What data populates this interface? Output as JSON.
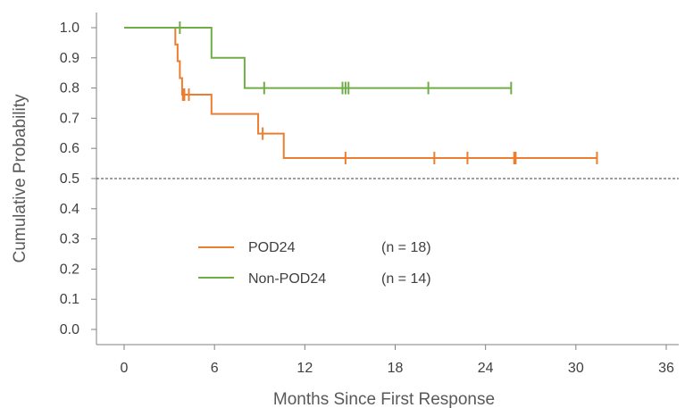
{
  "chart_data": {
    "type": "line",
    "title": "",
    "xlabel": "Months Since First Response",
    "ylabel": "Cumulative Probability",
    "xlim": [
      0,
      36
    ],
    "ylim": [
      0,
      1
    ],
    "x_ticks": [
      "0",
      "6",
      "12",
      "18",
      "24",
      "30",
      "36"
    ],
    "y_ticks": [
      "0.0",
      "0.1",
      "0.2",
      "0.3",
      "0.4",
      "0.5",
      "0.6",
      "0.7",
      "0.8",
      "0.9",
      "1.0"
    ],
    "reference_line": {
      "y": 0.5,
      "style": "dashed"
    },
    "grid": false,
    "legend_placement": "lower-center",
    "series": [
      {
        "name": "POD24",
        "n_label": "(n = 18)",
        "color": "#ED7D31",
        "steps": [
          [
            0,
            1.0
          ],
          [
            3.4,
            0.944
          ],
          [
            3.55,
            0.889
          ],
          [
            3.7,
            0.833
          ],
          [
            3.85,
            0.778
          ],
          [
            5.8,
            0.714
          ],
          [
            8.9,
            0.649
          ],
          [
            10.6,
            0.568
          ],
          [
            31.4,
            0.568
          ]
        ],
        "censored": [
          [
            3.9,
            0.778
          ],
          [
            4.0,
            0.778
          ],
          [
            4.3,
            0.778
          ],
          [
            9.2,
            0.649
          ],
          [
            14.7,
            0.568
          ],
          [
            20.6,
            0.568
          ],
          [
            22.8,
            0.568
          ],
          [
            25.9,
            0.568
          ],
          [
            26.0,
            0.568
          ],
          [
            31.4,
            0.568
          ]
        ]
      },
      {
        "name": "Non-POD24",
        "n_label": "(n = 14)",
        "color": "#70AD47",
        "steps": [
          [
            0,
            1.0
          ],
          [
            5.8,
            0.9
          ],
          [
            8.0,
            0.8
          ],
          [
            25.7,
            0.8
          ]
        ],
        "censored": [
          [
            3.7,
            1.0
          ],
          [
            9.3,
            0.8
          ],
          [
            14.5,
            0.8
          ],
          [
            14.7,
            0.8
          ],
          [
            14.9,
            0.8
          ],
          [
            20.2,
            0.8
          ],
          [
            25.7,
            0.8
          ]
        ]
      }
    ]
  }
}
